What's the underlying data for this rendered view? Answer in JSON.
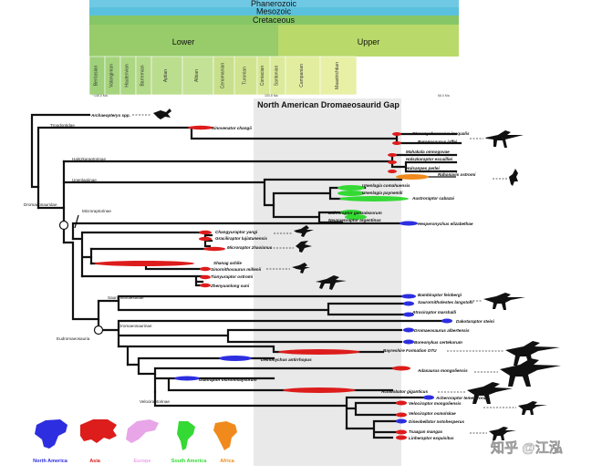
{
  "timescale": {
    "eon": "Phanerozoic",
    "era": "Mesozoic",
    "period": "Cretaceous",
    "epochs": [
      "Lower",
      "Upper"
    ],
    "stages": [
      "Berriasian",
      "Valanginian",
      "Hauterivian",
      "Barremian",
      "Aptian",
      "Albian",
      "Cenomanian",
      "Turonian",
      "Coniacian",
      "Santonian",
      "Campanian",
      "Maastrichtian"
    ],
    "ages": [
      "~145.0 Ma",
      "100.5 Ma",
      "66.0 Ma"
    ]
  },
  "gap_title": "North American Dromaeosaurid Gap",
  "colors": {
    "north_america": "#2d2ee0",
    "asia": "#dd1c1c",
    "europe": "#e8a6e8",
    "south_america": "#34d934",
    "africa": "#f08a1c",
    "gap_band": "#e9e9e9"
  },
  "clades": {
    "troodontidae": "Troodontidae",
    "halszkaraptorinae": "Halszkaraptorinae",
    "unenlagiinae": "Unenlagiinae",
    "dromaeosauridae": "Dromaeosauridae",
    "microraptorinae": "Microraptorinae",
    "saurornitholestinae": "Saurornitholestinae",
    "dromaeosaurinae": "Dromaeosaurinae",
    "eudromaeosauria": "Eudromaeosauria",
    "velociraptorinae": "Velociraptorinae"
  },
  "taxa": [
    "Archaeopteryx spp.",
    "Sinovenator changii",
    "Stenonychosaurus inequalis",
    "Byronosaurus jaffei",
    "Mahakala omnogovae",
    "Halszkaraptor escuilliei",
    "Hulsanpes perlei",
    "Rahonavis ostromi",
    "Unenlagia comahuensis",
    "Unenlagia paynemili",
    "Austroraptor cabazai",
    "Buitreraptor gonzalezorum",
    "Neuquenraptor argentinus",
    "Hesperonychus elizabethae",
    "Changyuraptor yangi",
    "Graciliraptor lujiatunensis",
    "Microraptor zhaoianus",
    "Shanag ashile",
    "Sinornithosaurus millenii",
    "Tianyuraptor ostromi",
    "Zhenyuanlong suni",
    "Bambiraptor feinbergi",
    "Saurornitholestes langstoni",
    "Atrociraptor marshalli",
    "Dakotaraptor steini",
    "Dromaeosaurus albertensis",
    "Boreonykus certekorum",
    "Bayreshire Formation OTU",
    "Deinonychus antirrhopus",
    "Adasaurus mongoliensis",
    "Utahraptor ostrommaysorum",
    "Achillobator giganticus",
    "Acheroraptor temertyorum",
    "Velociraptor mongoliensis",
    "Velociraptor osmolskae",
    "Dineobellator notohesperus",
    "Tsaagan mangas",
    "Linheraptor exquisitus"
  ],
  "highlight_taxon_color": "#2a2ad6",
  "legend": [
    "North America",
    "Asia",
    "Europe",
    "South America",
    "Africa"
  ],
  "watermark": "知乎 @江泓"
}
